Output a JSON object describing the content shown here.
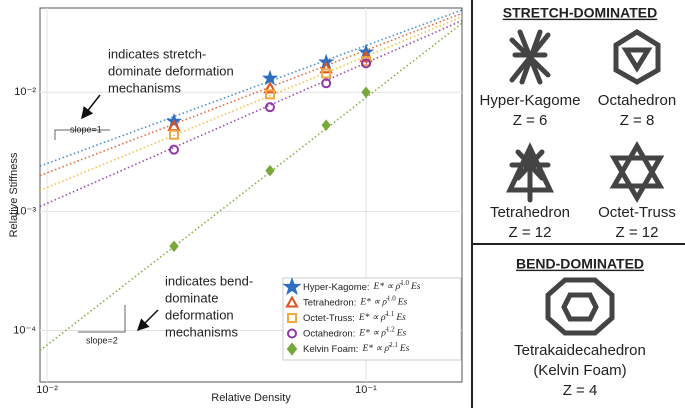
{
  "chart_data": {
    "type": "scatter",
    "xlabel": "Relative Density",
    "ylabel": "Relative Stiffness",
    "log_x": true,
    "log_y": true,
    "grid": true,
    "xlim": [
      0.0095,
      0.2
    ],
    "ylim": [
      3.7e-05,
      0.051
    ],
    "xticks": [
      {
        "value": 0.01,
        "label": "10⁻²"
      },
      {
        "value": 0.1,
        "label": "10⁻¹"
      }
    ],
    "yticks": [
      {
        "value": 0.01,
        "label": "10⁻²"
      },
      {
        "value": 0.001,
        "label": "10⁻³"
      },
      {
        "value": 0.0001,
        "label": "10⁻⁴"
      }
    ],
    "x": [
      0.025,
      0.05,
      0.075,
      0.1
    ],
    "fit_x": [
      0.0095,
      0.2
    ],
    "series": [
      {
        "name": "Hyper-Kagome:",
        "relation": "E* ∝ ρ̄",
        "exponent": "1.0",
        "suffix": "Es",
        "marker": "star",
        "color": "#2e6fc0",
        "line_color": "#4a90d0",
        "values": [
          0.0057,
          0.0131,
          0.0179,
          0.0217
        ],
        "fit_values": [
          0.0024,
          0.049
        ]
      },
      {
        "name": "Tetrahedron:",
        "relation": "E* ∝ ρ̄",
        "exponent": "1.0",
        "suffix": "Es",
        "marker": "triangle",
        "color": "#e0521f",
        "line_color": "#e8683a",
        "values": [
          0.0052,
          0.0108,
          0.0159,
          0.0197
        ],
        "fit_values": [
          0.002,
          0.046
        ]
      },
      {
        "name": "Octet-Truss:",
        "relation": "E* ∝ ρ̄",
        "exponent": "1.1",
        "suffix": "Es",
        "marker": "square",
        "color": "#f2a93b",
        "line_color": "#f5c04a",
        "values": [
          0.0044,
          0.0096,
          0.0144,
          0.0182
        ],
        "fit_values": [
          0.0015,
          0.043
        ]
      },
      {
        "name": "Octahedron:",
        "relation": "E* ∝ ρ̄",
        "exponent": "1.2",
        "suffix": "Es",
        "marker": "circle",
        "color": "#8e3aa8",
        "line_color": "#9a4ab5",
        "values": [
          0.0033,
          0.0075,
          0.0119,
          0.0175
        ],
        "fit_values": [
          0.0011,
          0.04
        ]
      },
      {
        "name": "Kelvin Foam:",
        "relation": "E* ∝ ρ̄",
        "exponent": "2.1",
        "suffix": "Es",
        "marker": "diamond",
        "color": "#78a83a",
        "line_color": "#86b048",
        "values": [
          0.00051,
          0.0022,
          0.0053,
          0.01
        ],
        "fit_values": [
          6.8e-05,
          0.038
        ]
      }
    ],
    "annotations": {
      "stretch": [
        "indicates stretch-",
        "dominate deformation",
        "mechanisms"
      ],
      "bend": [
        "indicates bend-",
        "dominate",
        "deformation",
        "mechanisms"
      ],
      "slope1": "slope=1",
      "slope2": "slope=2"
    }
  },
  "panels": {
    "stretch": {
      "title": "STRETCH-DOMINATED",
      "items": [
        {
          "name": "Hyper-Kagome",
          "z": "Z = 6"
        },
        {
          "name": "Octahedron",
          "z": "Z = 8"
        },
        {
          "name": "Tetrahedron",
          "z": "Z = 12"
        },
        {
          "name": "Octet-Truss",
          "z": "Z = 12"
        }
      ]
    },
    "bend": {
      "title": "BEND-DOMINATED",
      "name": "Tetrakaidecahedron",
      "note": "(Kelvin Foam)",
      "z": "Z = 4"
    }
  }
}
